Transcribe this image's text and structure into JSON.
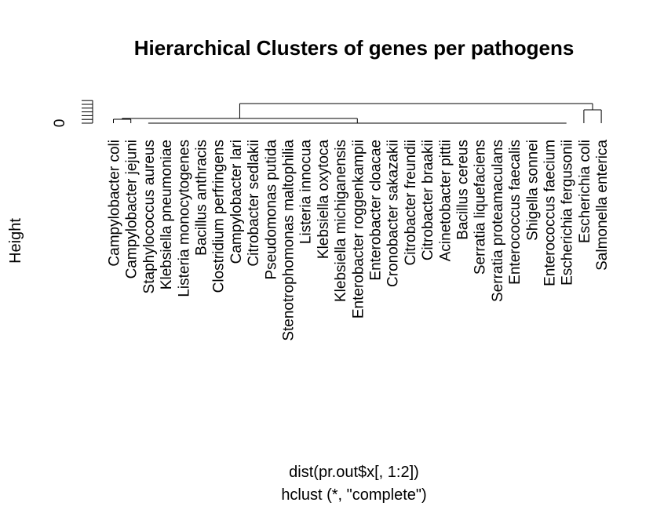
{
  "chart_data": {
    "type": "dendrogram",
    "title": "Hierarchical Clusters of genes per pathogens",
    "ylabel": "Height",
    "xlabel": "dist(pr.out$x[, 1:2])",
    "sub": "hclust (*, \"complete\")",
    "yticks": [
      "0"
    ],
    "leaves": [
      "Campylobacter coli",
      "Campylobacter jejuni",
      "Staphylococcus aureus",
      "Klebsiella pneumoniae",
      "Listeria monocytogenes",
      "Bacillus anthracis",
      "Clostridium perfringens",
      "Campylobacter lari",
      "Citrobacter sedlakii",
      "Pseudomonas putida",
      "Stenotrophomonas maltophilia",
      "Listeria innocua",
      "Klebsiella oxytoca",
      "Klebsiella michiganensis",
      "Enterobacter roggenkampii",
      "Enterobacter cloacae",
      "Cronobacter sakazakii",
      "Citrobacter freundii",
      "Citrobacter braakii",
      "Acinetobacter pittii",
      "Bacillus cereus",
      "Serratia liquefaciens",
      "Serratia proteamaculans",
      "Enterococcus faecalis",
      "Shigella sonnei",
      "Enterococcus faecium",
      "Escherichia fergusonii",
      "Escherichia coli",
      "Salmonella enterica"
    ]
  }
}
